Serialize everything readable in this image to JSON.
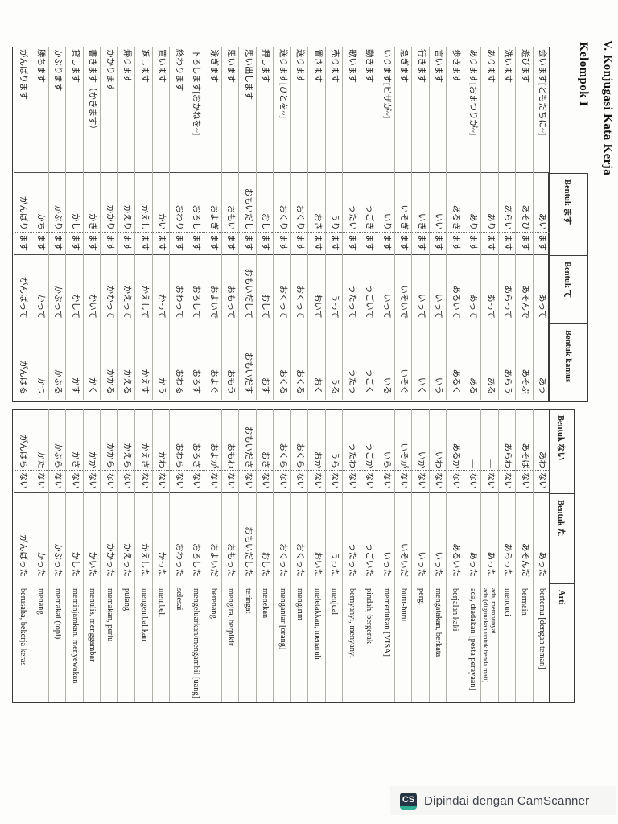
{
  "title_line1": "V. Konjugasi Kata Kerja",
  "title_line2": "Kelompok I",
  "table1_headers": {
    "masu": "Bentuk ます",
    "te": "Bentuk て",
    "kamus": "Bentuk kamus"
  },
  "table2_headers": {
    "nai": "Bentuk ない",
    "ta": "Bentuk た",
    "arti": "Arti"
  },
  "masu_suffix": "ます",
  "nai_suffix": "ない",
  "verbs": [
    {
      "verb": "会います[ともだちに~]",
      "masu_stem": "あい",
      "te": "あって",
      "kamus": "あう",
      "nai_stem": "あわ",
      "ta": "あった",
      "arti": "bertemu [dengan teman]",
      "arti2": ""
    },
    {
      "verb": "遊びます",
      "masu_stem": "あそび",
      "te": "あそんで",
      "kamus": "あそぶ",
      "nai_stem": "あそば",
      "ta": "あそんだ",
      "arti": "bermain",
      "arti2": ""
    },
    {
      "verb": "洗います",
      "masu_stem": "あらい",
      "te": "あらって",
      "kamus": "あらう",
      "nai_stem": "あらわ",
      "ta": "あらった",
      "arti": "mencuci",
      "arti2": ""
    },
    {
      "verb": "あります",
      "masu_stem": "あり",
      "te": "あって",
      "kamus": "ある",
      "nai_stem": "—",
      "ta": "あった",
      "arti": "ada, mempunyai",
      "arti2": "ada (digunakan untuk benda mati)"
    },
    {
      "verb": "あります[おまつりが~]",
      "masu_stem": "あり",
      "te": "あって",
      "kamus": "ある",
      "nai_stem": "—",
      "ta": "あった",
      "arti": "ada, diadakan [pesta perayaan]",
      "arti2": ""
    },
    {
      "verb": "歩きます",
      "masu_stem": "あるき",
      "te": "あるいて",
      "kamus": "あるく",
      "nai_stem": "あるか",
      "ta": "あるいた",
      "arti": "berjalan kaki",
      "arti2": ""
    },
    {
      "verb": "言います",
      "masu_stem": "いい",
      "te": "いって",
      "kamus": "いう",
      "nai_stem": "いわ",
      "ta": "いった",
      "arti": "mengatakan, berkata",
      "arti2": ""
    },
    {
      "verb": "行きます",
      "masu_stem": "いき",
      "te": "いって",
      "kamus": "いく",
      "nai_stem": "いか",
      "ta": "いった",
      "arti": "pergi",
      "arti2": ""
    },
    {
      "verb": "急ぎます",
      "masu_stem": "いそぎ",
      "te": "いそいで",
      "kamus": "いそぐ",
      "nai_stem": "いそが",
      "ta": "いそいだ",
      "arti": "buru-buru",
      "arti2": ""
    },
    {
      "verb": "いります[ビザが~]",
      "masu_stem": "いり",
      "te": "いって",
      "kamus": "いる",
      "nai_stem": "いら",
      "ta": "いった",
      "arti": "memerlukan [VISA]",
      "arti2": ""
    },
    {
      "verb": "動きます",
      "masu_stem": "うごき",
      "te": "うごいて",
      "kamus": "うごく",
      "nai_stem": "うごか",
      "ta": "うごいた",
      "arti": "pindah, bergerak",
      "arti2": ""
    },
    {
      "verb": "歌います",
      "masu_stem": "うたい",
      "te": "うたって",
      "kamus": "うたう",
      "nai_stem": "うたわ",
      "ta": "うたった",
      "arti": "bernyanyi, menyanyi",
      "arti2": ""
    },
    {
      "verb": "売ります",
      "masu_stem": "うり",
      "te": "うって",
      "kamus": "うる",
      "nai_stem": "うら",
      "ta": "うった",
      "arti": "menjual",
      "arti2": ""
    },
    {
      "verb": "置きます",
      "masu_stem": "おき",
      "te": "おいて",
      "kamus": "おく",
      "nai_stem": "おか",
      "ta": "おいた",
      "arti": "meletakkan, menaruh",
      "arti2": ""
    },
    {
      "verb": "送ります",
      "masu_stem": "おくり",
      "te": "おくって",
      "kamus": "おくる",
      "nai_stem": "おくら",
      "ta": "おくった",
      "arti": "mengirim",
      "arti2": ""
    },
    {
      "verb": "送ります[ひとを~]",
      "masu_stem": "おくり",
      "te": "おくって",
      "kamus": "おくる",
      "nai_stem": "おくら",
      "ta": "おくった",
      "arti": "mengantar [orang]",
      "arti2": ""
    },
    {
      "verb": "押します",
      "masu_stem": "おし",
      "te": "おして",
      "kamus": "おす",
      "nai_stem": "おさ",
      "ta": "おした",
      "arti": "menekan",
      "arti2": ""
    },
    {
      "verb": "思い出します",
      "masu_stem": "おもいだし",
      "te": "おもいだして",
      "kamus": "おもいだす",
      "nai_stem": "おもいださ",
      "ta": "おもいだした",
      "arti": "teringat",
      "arti2": ""
    },
    {
      "verb": "思います",
      "masu_stem": "おもい",
      "te": "おもって",
      "kamus": "おもう",
      "nai_stem": "おもわ",
      "ta": "おもった",
      "arti": "mengira, berpikir",
      "arti2": ""
    },
    {
      "verb": "泳ぎます",
      "masu_stem": "およぎ",
      "te": "およいで",
      "kamus": "およぐ",
      "nai_stem": "およが",
      "ta": "およいだ",
      "arti": "berenang",
      "arti2": ""
    },
    {
      "verb": "下ろします[おかねを~]",
      "masu_stem": "おろし",
      "te": "おろして",
      "kamus": "おろす",
      "nai_stem": "おろさ",
      "ta": "おろした",
      "arti": "mengeluarkan/mengambil [uang]",
      "arti2": ""
    },
    {
      "verb": "終わります",
      "masu_stem": "おわり",
      "te": "おわって",
      "kamus": "おわる",
      "nai_stem": "おわら",
      "ta": "おわった",
      "arti": "selesai",
      "arti2": ""
    },
    {
      "verb": "買います",
      "masu_stem": "かい",
      "te": "かって",
      "kamus": "かう",
      "nai_stem": "かわ",
      "ta": "かった",
      "arti": "membeli",
      "arti2": ""
    },
    {
      "verb": "返します",
      "masu_stem": "かえし",
      "te": "かえして",
      "kamus": "かえす",
      "nai_stem": "かえさ",
      "ta": "かえした",
      "arti": "mengembalikan",
      "arti2": ""
    },
    {
      "verb": "帰ります",
      "masu_stem": "かえり",
      "te": "かえって",
      "kamus": "かえる",
      "nai_stem": "かえら",
      "ta": "かえった",
      "arti": "pulang",
      "arti2": ""
    },
    {
      "verb": "かかります",
      "masu_stem": "かかり",
      "te": "かかって",
      "kamus": "かかる",
      "nai_stem": "かから",
      "ta": "かかった",
      "arti": "memakan, perlu",
      "arti2": ""
    },
    {
      "verb": "書きます（かきます）",
      "masu_stem": "かき",
      "te": "かいて",
      "kamus": "かく",
      "nai_stem": "かか",
      "ta": "かいた",
      "arti": "menulis, menggambar",
      "arti2": ""
    },
    {
      "verb": "貸します",
      "masu_stem": "かし",
      "te": "かして",
      "kamus": "かす",
      "nai_stem": "かさ",
      "ta": "かした",
      "arti": "meminjamkan, menyewakan",
      "arti2": ""
    },
    {
      "verb": "かぶります",
      "masu_stem": "かぶり",
      "te": "かぶって",
      "kamus": "かぶる",
      "nai_stem": "かぶら",
      "ta": "かぶった",
      "arti": "memakai (topi)",
      "arti2": ""
    },
    {
      "verb": "勝ちます",
      "masu_stem": "かち",
      "te": "かって",
      "kamus": "かつ",
      "nai_stem": "かた",
      "ta": "かった",
      "arti": "menang",
      "arti2": ""
    },
    {
      "verb": "がんばります",
      "masu_stem": "がんばり",
      "te": "がんばって",
      "kamus": "がんばる",
      "nai_stem": "がんばら",
      "ta": "がんばった",
      "arti": "berusaha, bekerja keras",
      "arti2": ""
    }
  ],
  "footer": {
    "logo": "CS",
    "text": "Dipindai dengan CamScanner"
  }
}
